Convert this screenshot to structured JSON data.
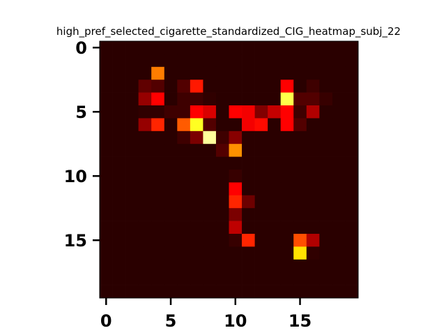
{
  "chart_data": {
    "type": "heatmap",
    "title": "high_pref_selected_cigarette_standardized_CIG_heatmap_subj_22",
    "xlabel": "",
    "ylabel": "",
    "rows": 20,
    "cols": 20,
    "colormap": "hot",
    "vmin": 0,
    "vmax": 1,
    "x_ticks": [
      0,
      5,
      10,
      15
    ],
    "y_ticks": [
      0,
      5,
      10,
      15
    ],
    "x_tick_labels": [
      "0",
      "5",
      "10",
      "15"
    ],
    "y_tick_labels": [
      "0",
      "5",
      "10",
      "15"
    ],
    "grid": false,
    "values": [
      [
        0.02,
        0.02,
        0.02,
        0.02,
        0.02,
        0.02,
        0.02,
        0.02,
        0.02,
        0.02,
        0.02,
        0.02,
        0.02,
        0.02,
        0.02,
        0.02,
        0.02,
        0.02,
        0.02,
        0.02
      ],
      [
        0.02,
        0.02,
        0.02,
        0.02,
        0.02,
        0.02,
        0.02,
        0.02,
        0.02,
        0.02,
        0.02,
        0.02,
        0.02,
        0.02,
        0.02,
        0.02,
        0.02,
        0.02,
        0.02,
        0.02
      ],
      [
        0.02,
        0.02,
        0.02,
        0.02,
        0.55,
        0.02,
        0.02,
        0.02,
        0.02,
        0.02,
        0.02,
        0.02,
        0.02,
        0.02,
        0.02,
        0.02,
        0.02,
        0.02,
        0.02,
        0.02
      ],
      [
        0.02,
        0.02,
        0.02,
        0.1,
        0.08,
        0.02,
        0.08,
        0.4,
        0.02,
        0.02,
        0.02,
        0.02,
        0.02,
        0.02,
        0.35,
        0.02,
        0.05,
        0.02,
        0.02,
        0.02
      ],
      [
        0.02,
        0.02,
        0.02,
        0.18,
        0.36,
        0.02,
        0.05,
        0.05,
        0.03,
        0.02,
        0.02,
        0.02,
        0.02,
        0.02,
        0.82,
        0.08,
        0.08,
        0.04,
        0.02,
        0.02
      ],
      [
        0.02,
        0.02,
        0.02,
        0.03,
        0.03,
        0.05,
        0.05,
        0.36,
        0.28,
        0.02,
        0.36,
        0.32,
        0.15,
        0.25,
        0.36,
        0.05,
        0.22,
        0.02,
        0.02,
        0.02
      ],
      [
        0.02,
        0.02,
        0.02,
        0.18,
        0.42,
        0.02,
        0.5,
        0.78,
        0.08,
        0.02,
        0.02,
        0.32,
        0.38,
        0.02,
        0.36,
        0.08,
        0.02,
        0.02,
        0.02,
        0.02
      ],
      [
        0.02,
        0.02,
        0.02,
        0.02,
        0.02,
        0.02,
        0.05,
        0.14,
        0.9,
        0.05,
        0.16,
        0.02,
        0.02,
        0.02,
        0.02,
        0.02,
        0.02,
        0.02,
        0.02,
        0.02
      ],
      [
        0.02,
        0.02,
        0.02,
        0.02,
        0.02,
        0.02,
        0.02,
        0.02,
        0.02,
        0.08,
        0.58,
        0.02,
        0.02,
        0.02,
        0.02,
        0.02,
        0.02,
        0.02,
        0.02,
        0.02
      ],
      [
        0.02,
        0.02,
        0.02,
        0.02,
        0.02,
        0.02,
        0.02,
        0.02,
        0.02,
        0.02,
        0.02,
        0.02,
        0.02,
        0.02,
        0.02,
        0.02,
        0.02,
        0.02,
        0.02,
        0.02
      ],
      [
        0.02,
        0.02,
        0.02,
        0.02,
        0.02,
        0.02,
        0.02,
        0.02,
        0.02,
        0.02,
        0.04,
        0.02,
        0.02,
        0.02,
        0.02,
        0.02,
        0.02,
        0.02,
        0.02,
        0.02
      ],
      [
        0.02,
        0.02,
        0.02,
        0.02,
        0.02,
        0.02,
        0.02,
        0.02,
        0.02,
        0.02,
        0.36,
        0.02,
        0.02,
        0.02,
        0.02,
        0.02,
        0.02,
        0.02,
        0.02,
        0.02
      ],
      [
        0.02,
        0.02,
        0.02,
        0.02,
        0.02,
        0.02,
        0.02,
        0.02,
        0.02,
        0.02,
        0.42,
        0.12,
        0.02,
        0.02,
        0.02,
        0.02,
        0.02,
        0.02,
        0.02,
        0.02
      ],
      [
        0.02,
        0.02,
        0.02,
        0.02,
        0.02,
        0.02,
        0.02,
        0.02,
        0.02,
        0.02,
        0.14,
        0.02,
        0.02,
        0.02,
        0.02,
        0.02,
        0.02,
        0.02,
        0.02,
        0.02
      ],
      [
        0.02,
        0.02,
        0.02,
        0.02,
        0.02,
        0.02,
        0.02,
        0.02,
        0.02,
        0.02,
        0.24,
        0.02,
        0.02,
        0.02,
        0.02,
        0.02,
        0.02,
        0.02,
        0.02,
        0.02
      ],
      [
        0.02,
        0.02,
        0.02,
        0.02,
        0.02,
        0.02,
        0.02,
        0.02,
        0.02,
        0.02,
        0.04,
        0.42,
        0.02,
        0.02,
        0.02,
        0.48,
        0.22,
        0.02,
        0.02,
        0.02
      ],
      [
        0.02,
        0.02,
        0.02,
        0.02,
        0.02,
        0.02,
        0.02,
        0.02,
        0.02,
        0.02,
        0.02,
        0.02,
        0.02,
        0.02,
        0.02,
        0.7,
        0.03,
        0.02,
        0.02,
        0.02
      ],
      [
        0.02,
        0.02,
        0.02,
        0.02,
        0.02,
        0.02,
        0.02,
        0.02,
        0.02,
        0.02,
        0.02,
        0.02,
        0.02,
        0.02,
        0.02,
        0.02,
        0.02,
        0.02,
        0.02,
        0.02
      ],
      [
        0.02,
        0.02,
        0.02,
        0.02,
        0.02,
        0.02,
        0.02,
        0.02,
        0.02,
        0.02,
        0.02,
        0.02,
        0.02,
        0.02,
        0.02,
        0.02,
        0.02,
        0.02,
        0.02,
        0.02
      ],
      [
        0.02,
        0.02,
        0.02,
        0.02,
        0.02,
        0.02,
        0.02,
        0.02,
        0.02,
        0.02,
        0.02,
        0.02,
        0.02,
        0.02,
        0.02,
        0.02,
        0.02,
        0.02,
        0.02,
        0.02
      ]
    ]
  }
}
